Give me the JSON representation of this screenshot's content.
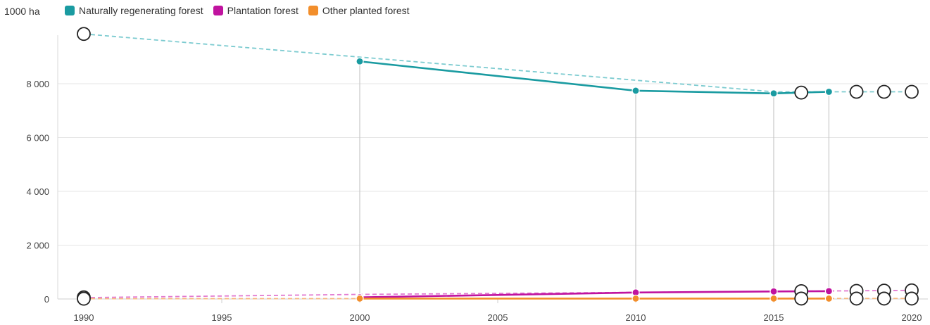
{
  "chart_data": {
    "type": "line",
    "unit_label": "1000 ha",
    "x_ticks": [
      1990,
      1995,
      2000,
      2005,
      2010,
      2015,
      2020
    ],
    "y_ticks": [
      0,
      2000,
      4000,
      6000,
      8000
    ],
    "y_tick_labels": [
      "0",
      "2 000",
      "4 000",
      "6 000",
      "8 000"
    ],
    "xlim": [
      1990,
      2020
    ],
    "ylim": [
      0,
      9800
    ],
    "grid": "horizontal",
    "legend_position": "top-left",
    "series": [
      {
        "name": "Naturally regenerating forest",
        "color": "#1a9ba1",
        "trend_color": "#7ccbd0",
        "points": [
          {
            "x": 2000,
            "y": 8830
          },
          {
            "x": 2010,
            "y": 7740
          },
          {
            "x": 2015,
            "y": 7640
          },
          {
            "x": 2017,
            "y": 7700
          }
        ],
        "trend": [
          {
            "x": 1990,
            "y": 9850
          },
          {
            "x": 2015,
            "y": 7700
          },
          {
            "x": 2020,
            "y": 7700
          }
        ],
        "reported": [
          {
            "x": 1990,
            "y": 9850
          },
          {
            "x": 2016,
            "y": 7670
          },
          {
            "x": 2018,
            "y": 7700
          },
          {
            "x": 2019,
            "y": 7700
          },
          {
            "x": 2020,
            "y": 7700
          }
        ]
      },
      {
        "name": "Plantation forest",
        "color": "#c0139f",
        "trend_color": "#e27ad0",
        "points": [
          {
            "x": 2000,
            "y": 60
          },
          {
            "x": 2010,
            "y": 240
          },
          {
            "x": 2015,
            "y": 280
          },
          {
            "x": 2017,
            "y": 290
          }
        ],
        "trend": [
          {
            "x": 1990,
            "y": 50
          },
          {
            "x": 2000,
            "y": 170
          },
          {
            "x": 2020,
            "y": 320
          }
        ],
        "reported": [
          {
            "x": 1990,
            "y": 60
          },
          {
            "x": 2016,
            "y": 290
          },
          {
            "x": 2018,
            "y": 300
          },
          {
            "x": 2019,
            "y": 310
          },
          {
            "x": 2020,
            "y": 320
          }
        ]
      },
      {
        "name": "Other planted forest",
        "color": "#f28e2b",
        "trend_color": "#f6b980",
        "points": [
          {
            "x": 2000,
            "y": 15
          },
          {
            "x": 2010,
            "y": 15
          },
          {
            "x": 2015,
            "y": 15
          },
          {
            "x": 2017,
            "y": 15
          }
        ],
        "trend": [
          {
            "x": 1990,
            "y": 10
          },
          {
            "x": 2020,
            "y": 20
          }
        ],
        "reported": [
          {
            "x": 1990,
            "y": 10
          },
          {
            "x": 2016,
            "y": 15
          },
          {
            "x": 2018,
            "y": 15
          },
          {
            "x": 2019,
            "y": 15
          },
          {
            "x": 2020,
            "y": 15
          }
        ]
      }
    ],
    "guide_lines_x": [
      2000,
      2010,
      2015,
      2017
    ]
  }
}
